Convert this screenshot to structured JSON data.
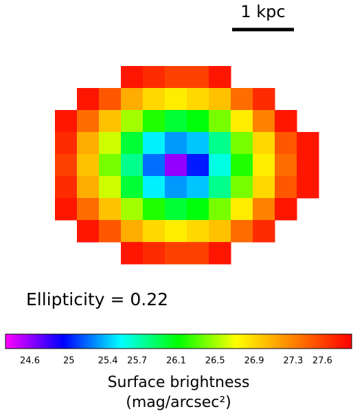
{
  "chart_data": {
    "type": "heatmap",
    "scale_bar_label": "1 kpc",
    "annotation": "Ellipticity = 0.22",
    "values": [
      [
        null,
        null,
        null,
        27.8,
        27.7,
        27.6,
        27.6,
        27.8,
        null,
        null,
        null,
        null
      ],
      [
        null,
        27.8,
        27.5,
        27.1,
        26.9,
        26.8,
        26.9,
        27.0,
        27.4,
        27.7,
        null,
        null
      ],
      [
        27.8,
        27.4,
        27.0,
        26.5,
        26.2,
        26.0,
        26.1,
        26.4,
        26.8,
        27.3,
        27.8,
        null
      ],
      [
        27.7,
        27.1,
        26.6,
        26.0,
        25.5,
        25.3,
        25.4,
        25.8,
        26.4,
        26.9,
        27.5,
        27.8
      ],
      [
        27.6,
        27.0,
        26.4,
        25.8,
        25.2,
        24.6,
        25.0,
        25.6,
        26.2,
        26.8,
        27.4,
        27.8
      ],
      [
        27.7,
        27.1,
        26.6,
        26.0,
        25.5,
        25.3,
        25.4,
        25.8,
        26.4,
        26.9,
        27.5,
        27.8
      ],
      [
        27.8,
        27.4,
        27.0,
        26.5,
        26.2,
        26.0,
        26.1,
        26.4,
        26.8,
        27.3,
        27.8,
        null
      ],
      [
        null,
        27.8,
        27.5,
        27.1,
        26.9,
        26.8,
        26.9,
        27.0,
        27.4,
        27.7,
        null,
        null
      ],
      [
        null,
        null,
        null,
        27.8,
        27.7,
        27.6,
        27.6,
        27.8,
        null,
        null,
        null,
        null
      ]
    ],
    "colorbar": {
      "label": [
        "Surface brightness",
        "(mag/arcsec²)"
      ],
      "zlim": [
        24.35,
        27.9
      ],
      "ticks": [
        24.6,
        25,
        25.4,
        25.7,
        26.1,
        26.5,
        26.9,
        27.3,
        27.6
      ],
      "colormap": [
        "#ff00ff",
        "#0000ff",
        "#00ffff",
        "#00ff00",
        "#ffff00",
        "#ff8000",
        "#ff0000"
      ]
    }
  }
}
